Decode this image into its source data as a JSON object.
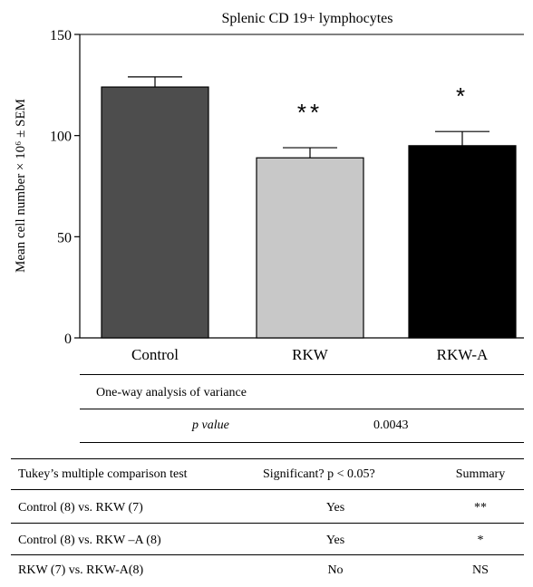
{
  "chart_data": {
    "type": "bar",
    "title": "Splenic CD 19+ lymphocytes",
    "ylabel": "Mean cell number × 10⁶ ± SEM",
    "ylim": [
      0,
      150
    ],
    "yticks": [
      0,
      50,
      100,
      150
    ],
    "categories": [
      "Control",
      "RKW",
      "RKW-A"
    ],
    "values": [
      124,
      89,
      95
    ],
    "errors": [
      5,
      5,
      7
    ],
    "colors": [
      "#4d4d4d",
      "#c8c8c8",
      "#000000"
    ],
    "annotations": [
      "",
      "**",
      "*"
    ],
    "grid": false
  },
  "anova": {
    "heading": "One-way analysis of variance",
    "p_label": "p value",
    "p_value": "0.0043"
  },
  "tukey": {
    "headers": [
      "Tukey’s multiple comparison test",
      "Significant? p < 0.05?",
      "Summary"
    ],
    "rows": [
      [
        "Control (8) vs. RKW (7)",
        "Yes",
        "**"
      ],
      [
        "Control (8) vs. RKW –A (8)",
        "Yes",
        "*"
      ],
      [
        "RKW (7) vs. RKW-A(8)",
        "No",
        "NS"
      ]
    ]
  }
}
